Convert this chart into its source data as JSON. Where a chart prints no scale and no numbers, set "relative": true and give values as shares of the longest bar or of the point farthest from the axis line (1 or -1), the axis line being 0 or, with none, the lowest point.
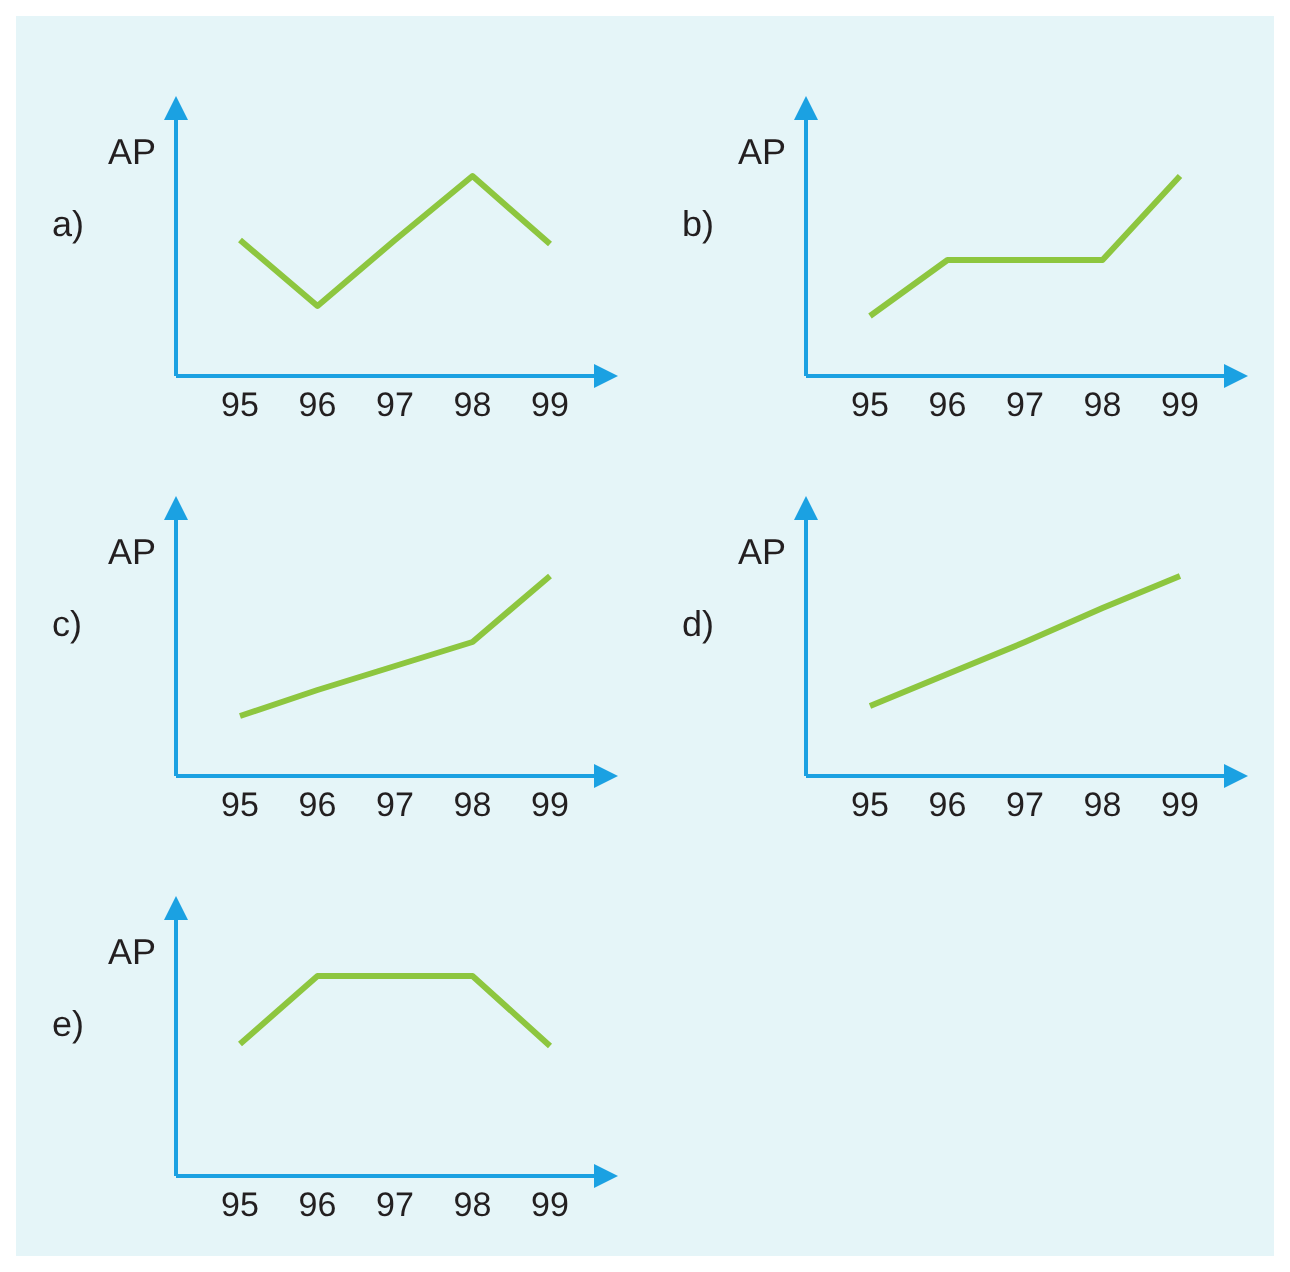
{
  "chart_data": [
    {
      "type": "line",
      "ylabel": "AP",
      "annotations": [
        "a)"
      ],
      "categories": [
        "95",
        "96",
        "97",
        "98",
        "99"
      ],
      "relative": true,
      "marker": "none",
      "grid": false,
      "legend": false,
      "series": [
        {
          "color": "#8dc63f",
          "values": [
            0.68,
            0.35,
            0.68,
            1,
            0.66
          ]
        }
      ]
    },
    {
      "type": "line",
      "ylabel": "AP",
      "annotations": [
        "b)"
      ],
      "categories": [
        "95",
        "96",
        "97",
        "98",
        "99"
      ],
      "relative": true,
      "marker": "none",
      "grid": false,
      "legend": false,
      "series": [
        {
          "color": "#8dc63f",
          "values": [
            0.3,
            0.58,
            0.58,
            0.58,
            1
          ]
        }
      ]
    },
    {
      "type": "line",
      "ylabel": "AP",
      "annotations": [
        "c)"
      ],
      "categories": [
        "95",
        "96",
        "97",
        "98",
        "99"
      ],
      "relative": true,
      "marker": "none",
      "grid": false,
      "legend": false,
      "series": [
        {
          "color": "#8dc63f",
          "values": [
            0.3,
            0.43,
            0.55,
            0.67,
            1
          ]
        }
      ]
    },
    {
      "type": "line",
      "ylabel": "AP",
      "annotations": [
        "d)"
      ],
      "categories": [
        "95",
        "96",
        "97",
        "98",
        "99"
      ],
      "relative": true,
      "marker": "none",
      "grid": false,
      "legend": false,
      "series": [
        {
          "color": "#8dc63f",
          "values": [
            0.35,
            0.51,
            0.67,
            0.84,
            1
          ]
        }
      ]
    },
    {
      "type": "line",
      "ylabel": "AP",
      "annotations": [
        "e)"
      ],
      "categories": [
        "95",
        "96",
        "97",
        "98",
        "99"
      ],
      "relative": true,
      "marker": "none",
      "grid": false,
      "legend": false,
      "series": [
        {
          "color": "#8dc63f",
          "values": [
            0.66,
            1,
            1,
            1,
            0.65
          ]
        }
      ]
    }
  ]
}
